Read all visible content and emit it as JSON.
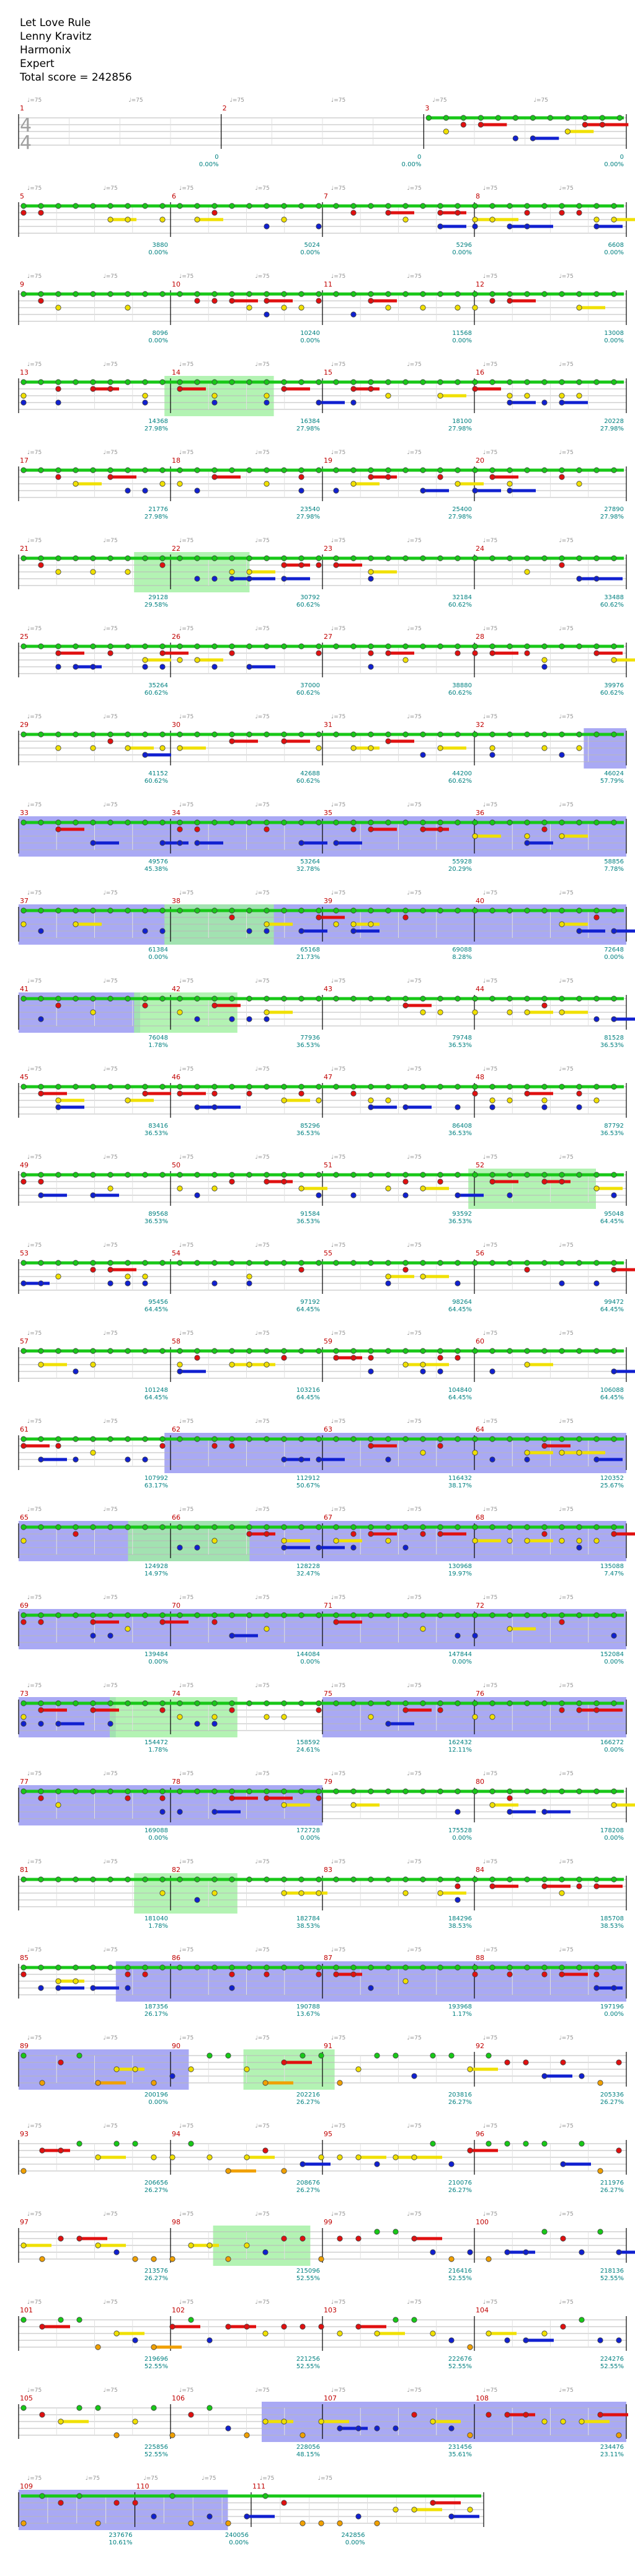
{
  "header": {
    "song": "Let Love Rule",
    "artist": "Lenny Kravitz",
    "game": "Harmonix",
    "difficulty": "Expert",
    "total_score": "Total score = 242856"
  },
  "time_signature": {
    "top": "4",
    "bottom": "4"
  },
  "colors": {
    "green": "#18c818",
    "red": "#e01010",
    "yellow": "#f0e000",
    "blue": "#1020d0",
    "orange": "#f0a000",
    "overdrive": "#8c8cf0",
    "star_phrase": "#a0f0a0",
    "score_text": "#008080",
    "measure_num": "#c00000",
    "tempo_text": "#909090"
  },
  "rows": [
    {
      "measures": [
        "1",
        "2",
        "3"
      ],
      "scores": [
        "0",
        "0",
        "0"
      ],
      "percents": [
        "0.00%",
        "0.00%",
        "0.00%"
      ]
    },
    {
      "measures": [
        "5",
        "6",
        "7",
        "8"
      ],
      "scores": [
        "3880",
        "5024",
        "5296",
        "6608"
      ],
      "percents": [
        "0.00%",
        "0.00%",
        "0.00%",
        "0.00%"
      ]
    },
    {
      "measures": [
        "9",
        "10",
        "11",
        "12"
      ],
      "scores": [
        "8096",
        "10240",
        "11568",
        "13008"
      ],
      "percents": [
        "0.00%",
        "0.00%",
        "0.00%",
        "0.00%"
      ]
    },
    {
      "measures": [
        "13",
        "14",
        "15",
        "16"
      ],
      "scores": [
        "14368",
        "16384",
        "18100",
        "20228"
      ],
      "percents": [
        "27.98%",
        "27.98%",
        "27.98%",
        "27.98%"
      ]
    },
    {
      "measures": [
        "17",
        "18",
        "19",
        "20"
      ],
      "scores": [
        "21776",
        "23540",
        "25400",
        "27890"
      ],
      "percents": [
        "27.98%",
        "27.98%",
        "27.98%",
        "27.98%"
      ]
    },
    {
      "measures": [
        "21",
        "22",
        "23",
        "24"
      ],
      "scores": [
        "29128",
        "30792",
        "32184",
        "33488"
      ],
      "percents": [
        "29.58%",
        "60.62%",
        "60.62%",
        "60.62%"
      ]
    },
    {
      "measures": [
        "25",
        "26",
        "27",
        "28"
      ],
      "scores": [
        "35264",
        "37000",
        "38880",
        "39976"
      ],
      "percents": [
        "60.62%",
        "60.62%",
        "60.62%",
        "60.62%"
      ]
    },
    {
      "measures": [
        "29",
        "30",
        "31",
        "32"
      ],
      "scores": [
        "41152",
        "42688",
        "44200",
        "46024"
      ],
      "percents": [
        "60.62%",
        "60.62%",
        "60.62%",
        "57.79%"
      ]
    },
    {
      "measures": [
        "33",
        "34",
        "35",
        "36"
      ],
      "scores": [
        "49576",
        "53264",
        "55928",
        "58856"
      ],
      "percents": [
        "45.38%",
        "32.78%",
        "20.29%",
        "7.78%"
      ]
    },
    {
      "measures": [
        "37",
        "38",
        "39",
        "40"
      ],
      "scores": [
        "61384",
        "65168",
        "69088",
        "72648"
      ],
      "percents": [
        "0.00%",
        "21.73%",
        "8.28%",
        "0.00%"
      ]
    },
    {
      "measures": [
        "41",
        "42",
        "43",
        "44"
      ],
      "scores": [
        "76048",
        "77936",
        "79748",
        "81528"
      ],
      "percents": [
        "1.78%",
        "36.53%",
        "36.53%",
        "36.53%"
      ]
    },
    {
      "measures": [
        "45",
        "46",
        "47",
        "48"
      ],
      "scores": [
        "83416",
        "85296",
        "86408",
        "87792"
      ],
      "percents": [
        "36.53%",
        "36.53%",
        "36.53%",
        "36.53%"
      ]
    },
    {
      "measures": [
        "49",
        "50",
        "51",
        "52"
      ],
      "scores": [
        "89568",
        "91584",
        "93592",
        "95048"
      ],
      "percents": [
        "36.53%",
        "36.53%",
        "36.53%",
        "64.45%"
      ]
    },
    {
      "measures": [
        "53",
        "54",
        "55",
        "56"
      ],
      "scores": [
        "95456",
        "97192",
        "98264",
        "99472"
      ],
      "percents": [
        "64.45%",
        "64.45%",
        "64.45%",
        "64.45%"
      ]
    },
    {
      "measures": [
        "57",
        "58",
        "59",
        "60"
      ],
      "scores": [
        "101248",
        "103216",
        "104840",
        "106088"
      ],
      "percents": [
        "64.45%",
        "64.45%",
        "64.45%",
        "64.45%"
      ]
    },
    {
      "measures": [
        "61",
        "62",
        "63",
        "64"
      ],
      "scores": [
        "107992",
        "112912",
        "116432",
        "120352"
      ],
      "percents": [
        "63.17%",
        "50.67%",
        "38.17%",
        "25.67%"
      ]
    },
    {
      "measures": [
        "65",
        "66",
        "67",
        "68"
      ],
      "scores": [
        "124928",
        "128228",
        "130968",
        "135088"
      ],
      "percents": [
        "14.97%",
        "32.47%",
        "19.97%",
        "7.47%"
      ]
    },
    {
      "measures": [
        "69",
        "70",
        "71",
        "72"
      ],
      "scores": [
        "139484",
        "144084",
        "147844",
        "152084"
      ],
      "percents": [
        "0.00%",
        "0.00%",
        "0.00%",
        "0.00%"
      ]
    },
    {
      "measures": [
        "73",
        "74",
        "75",
        "76"
      ],
      "scores": [
        "154472",
        "158592",
        "162432",
        "166272"
      ],
      "percents": [
        "1.78%",
        "24.61%",
        "12.11%",
        "0.00%"
      ]
    },
    {
      "measures": [
        "77",
        "78",
        "79",
        "80"
      ],
      "scores": [
        "169088",
        "172728",
        "175528",
        "178208"
      ],
      "percents": [
        "0.00%",
        "0.00%",
        "0.00%",
        "0.00%"
      ]
    },
    {
      "measures": [
        "81",
        "82",
        "83",
        "84"
      ],
      "scores": [
        "181040",
        "182784",
        "184296",
        "185708"
      ],
      "percents": [
        "1.78%",
        "38.53%",
        "38.53%",
        "38.53%"
      ]
    },
    {
      "measures": [
        "85",
        "86",
        "87",
        "88"
      ],
      "scores": [
        "187356",
        "190788",
        "193968",
        "197196"
      ],
      "percents": [
        "26.17%",
        "13.67%",
        "1.17%",
        "0.00%"
      ]
    },
    {
      "measures": [
        "89",
        "90",
        "91",
        "92"
      ],
      "scores": [
        "200196",
        "202216",
        "203816",
        "205336"
      ],
      "percents": [
        "0.00%",
        "26.27%",
        "26.27%",
        "26.27%"
      ]
    },
    {
      "measures": [
        "93",
        "94",
        "95",
        "96"
      ],
      "scores": [
        "206656",
        "208676",
        "210076",
        "211976"
      ],
      "percents": [
        "26.27%",
        "26.27%",
        "26.27%",
        "26.27%"
      ]
    },
    {
      "measures": [
        "97",
        "98",
        "99",
        "100"
      ],
      "scores": [
        "213576",
        "215096",
        "216416",
        "218136"
      ],
      "percents": [
        "26.27%",
        "52.55%",
        "52.55%",
        "52.55%"
      ]
    },
    {
      "measures": [
        "101",
        "102",
        "103",
        "104"
      ],
      "scores": [
        "219696",
        "221256",
        "222676",
        "224276"
      ],
      "percents": [
        "52.55%",
        "52.55%",
        "52.55%",
        "52.55%"
      ]
    },
    {
      "measures": [
        "105",
        "106",
        "107",
        "108"
      ],
      "scores": [
        "225856",
        "228056",
        "231456",
        "234476"
      ],
      "percents": [
        "52.55%",
        "48.15%",
        "35.61%",
        "23.11%"
      ]
    },
    {
      "measures": [
        "109",
        "110",
        "111"
      ],
      "scores": [
        "237676",
        "240056",
        "242856"
      ],
      "percents": [
        "10.61%",
        "0.00%",
        "0.00%"
      ]
    }
  ]
}
